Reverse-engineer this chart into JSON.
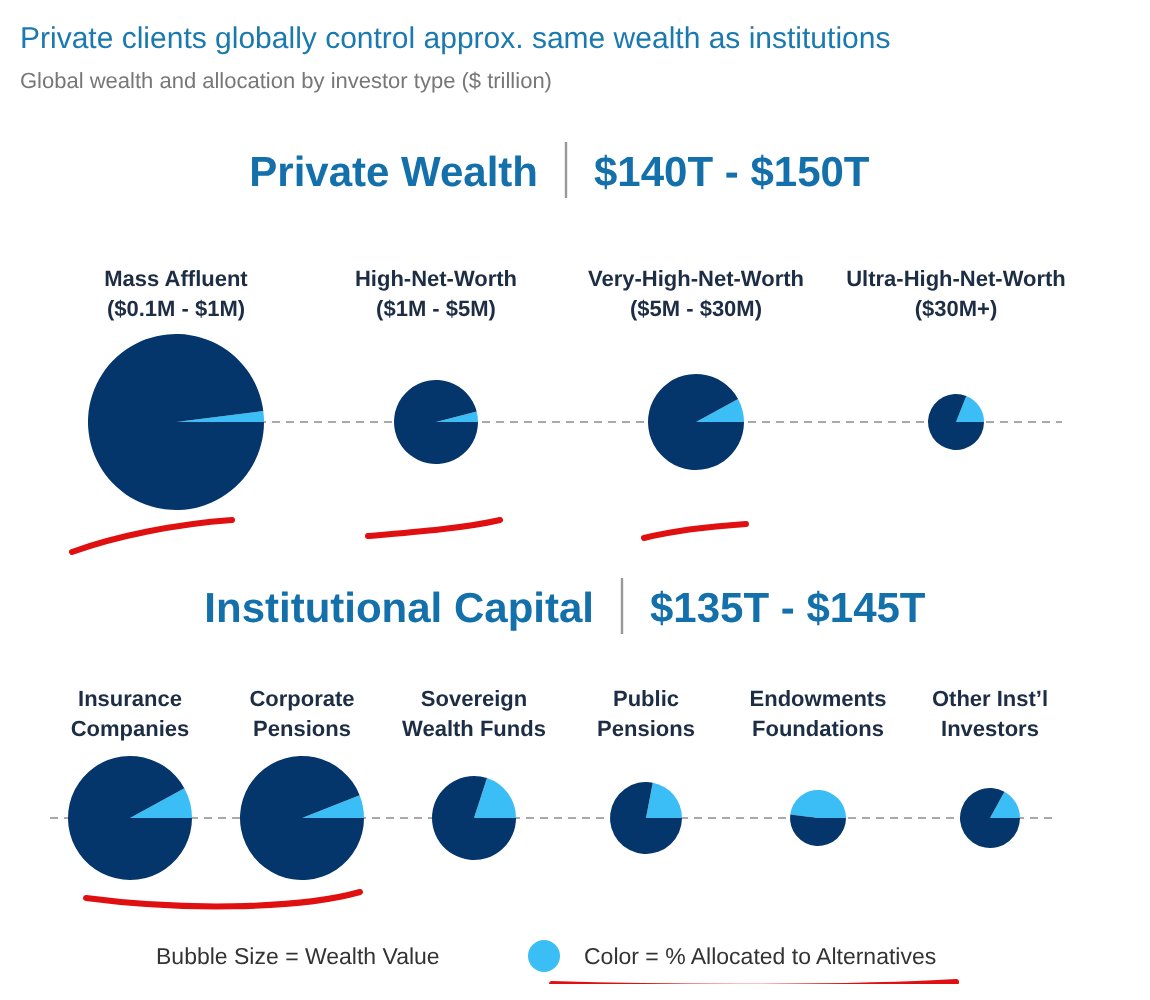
{
  "chart_data": [
    {
      "type": "other",
      "title": "Private clients globally control approx. same wealth as institutions",
      "subtitle": "Global wealth and allocation by investor type ($ trillion)"
    },
    {
      "type": "other",
      "title": "Private Wealth",
      "subtitle": "$140T - $150T"
    },
    {
      "type": "pie",
      "title": "Mass Affluent ($0.1M - $1M)",
      "categories": [
        null,
        null
      ],
      "values": [
        2,
        98
      ],
      "colors": [
        "#3bbef5",
        "#04356b"
      ]
    },
    {
      "type": "pie",
      "title": "High-Net-Worth ($1M - $5M)",
      "categories": [
        null,
        null
      ],
      "values": [
        4,
        96
      ],
      "colors": [
        "#3bbef5",
        "#04356b"
      ]
    },
    {
      "type": "pie",
      "title": "Very-High-Net-Worth ($5M - $30M)",
      "categories": [
        null,
        null
      ],
      "values": [
        8,
        92
      ],
      "colors": [
        "#3bbef5",
        "#04356b"
      ]
    },
    {
      "type": "pie",
      "title": "Ultra-High-Net-Worth ($30M+)",
      "categories": [
        null,
        null
      ],
      "values": [
        19,
        81
      ],
      "colors": [
        "#3bbef5",
        "#04356b"
      ]
    },
    {
      "type": "other",
      "title": "Institutional Capital",
      "subtitle": "$135T - $145T"
    },
    {
      "type": "pie",
      "title": "Insurance Companies",
      "categories": [
        null,
        null
      ],
      "values": [
        8,
        92
      ],
      "colors": [
        "#3bbef5",
        "#04356b"
      ]
    },
    {
      "type": "pie",
      "title": "Corporate Pensions",
      "categories": [
        null,
        null
      ],
      "values": [
        6,
        94
      ],
      "colors": [
        "#3bbef5",
        "#04356b"
      ]
    },
    {
      "type": "pie",
      "title": "Sovereign Wealth Funds",
      "categories": [
        null,
        null
      ],
      "values": [
        20,
        80
      ],
      "colors": [
        "#3bbef5",
        "#04356b"
      ]
    },
    {
      "type": "pie",
      "title": "Public Pensions",
      "categories": [
        null,
        null
      ],
      "values": [
        22,
        78
      ],
      "colors": [
        "#3bbef5",
        "#04356b"
      ]
    },
    {
      "type": "pie",
      "title": "Endowments Foundations",
      "categories": [
        null,
        null
      ],
      "values": [
        48,
        52
      ],
      "colors": [
        "#3bbef5",
        "#04356b"
      ]
    },
    {
      "type": "pie",
      "title": "Other Inst’l Investors",
      "categories": [
        null,
        null
      ],
      "values": [
        17,
        83
      ],
      "colors": [
        "#3bbef5",
        "#04356b"
      ]
    },
    {
      "type": "other",
      "annotations": [
        "Bubble Size = Wealth Value",
        "Color = % Allocated to Alternatives"
      ]
    }
  ]
}
